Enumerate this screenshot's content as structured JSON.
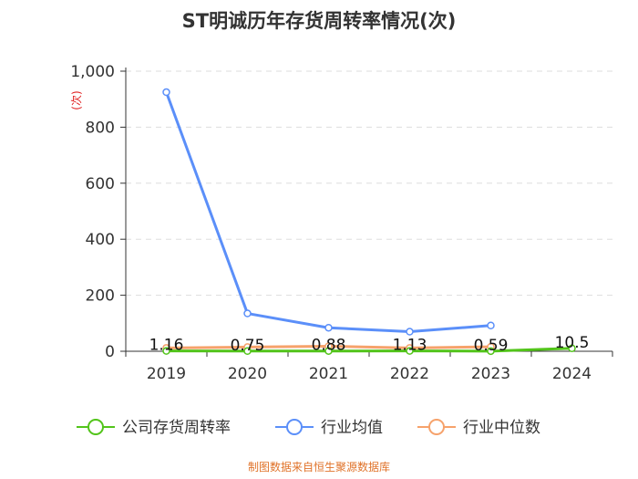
{
  "chart_data": {
    "type": "line",
    "title": "ST明诚历年存货周转率情况(次)",
    "ylabel": "(次)",
    "categories": [
      "2019",
      "2020",
      "2021",
      "2022",
      "2023",
      "2024"
    ],
    "ylim": [
      0,
      1000
    ],
    "yticks": [
      0,
      200,
      400,
      600,
      800,
      1000
    ],
    "ytick_labels": [
      "0",
      "200",
      "400",
      "600",
      "800",
      "1,000"
    ],
    "grid": true,
    "legend_position": "bottom",
    "series": [
      {
        "name": "公司存货周转率",
        "color": "#52c41a",
        "values": [
          1.16,
          0.75,
          0.88,
          1.13,
          0.59,
          10.5
        ],
        "labels": [
          "1.16",
          "0.75",
          "0.88",
          "1.13",
          "0.59",
          "10.5"
        ]
      },
      {
        "name": "行业均值",
        "color": "#5b8ff9",
        "values": [
          925,
          135,
          84,
          70,
          92,
          null
        ]
      },
      {
        "name": "行业中位数",
        "color": "#f6a26b",
        "values": [
          12,
          15,
          18,
          12,
          16,
          null
        ]
      }
    ],
    "source": "制图数据来自恒生聚源数据库",
    "source_color": "#e0732a",
    "ylabel_color": "#e02020"
  }
}
